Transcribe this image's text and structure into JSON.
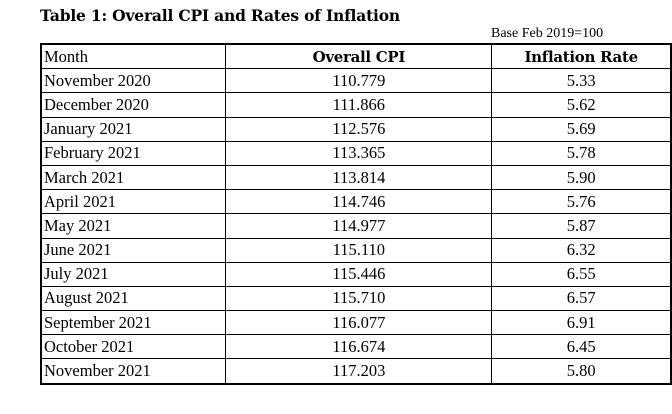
{
  "title": "Table 1:  Overall CPI and Rates of Inflation",
  "base_note": "Base Feb 2019=100",
  "table": {
    "headers": {
      "month": "Month",
      "cpi": "Overall CPI",
      "inflation": "Inflation Rate"
    },
    "rows": [
      {
        "month": "November 2020",
        "cpi": "110.779",
        "inflation": "5.33"
      },
      {
        "month": "December 2020",
        "cpi": "111.866",
        "inflation": "5.62"
      },
      {
        "month": "January 2021",
        "cpi": "112.576",
        "inflation": "5.69"
      },
      {
        "month": "February 2021",
        "cpi": "113.365",
        "inflation": "5.78"
      },
      {
        "month": "March 2021",
        "cpi": "113.814",
        "inflation": "5.90"
      },
      {
        "month": "April 2021",
        "cpi": "114.746",
        "inflation": "5.76"
      },
      {
        "month": "May 2021",
        "cpi": "114.977",
        "inflation": "5.87"
      },
      {
        "month": "June 2021",
        "cpi": "115.110",
        "inflation": "6.32"
      },
      {
        "month": "July 2021",
        "cpi": "115.446",
        "inflation": "6.55"
      },
      {
        "month": "August 2021",
        "cpi": "115.710",
        "inflation": "6.57"
      },
      {
        "month": "September 2021",
        "cpi": "116.077",
        "inflation": "6.91"
      },
      {
        "month": "October 2021",
        "cpi": "116.674",
        "inflation": "6.45"
      },
      {
        "month": "November 2021",
        "cpi": "117.203",
        "inflation": "5.80"
      }
    ]
  }
}
